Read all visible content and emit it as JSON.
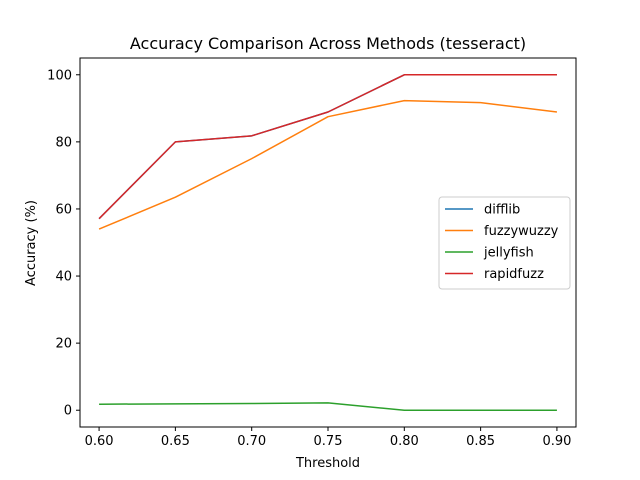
{
  "chart_data": {
    "type": "line",
    "title": "Accuracy Comparison Across Methods (tesseract)",
    "xlabel": "Threshold",
    "ylabel": "Accuracy (%)",
    "x": [
      0.6,
      0.65,
      0.7,
      0.75,
      0.8,
      0.85,
      0.9
    ],
    "x_tick_labels": [
      "0.60",
      "0.65",
      "0.70",
      "0.75",
      "0.80",
      "0.85",
      "0.90"
    ],
    "y_ticks": [
      0,
      20,
      40,
      60,
      80,
      100
    ],
    "y_tick_labels": [
      "0",
      "20",
      "40",
      "60",
      "80",
      "100"
    ],
    "xlim": [
      0.5875,
      0.9125
    ],
    "ylim": [
      -5.0,
      105.0
    ],
    "grid": false,
    "legend_position": "center-right",
    "series": [
      {
        "name": "difflib",
        "color": "#1f77b4",
        "values": [
          57.1,
          80.0,
          81.8,
          88.9,
          100.0,
          100.0,
          100.0
        ]
      },
      {
        "name": "fuzzywuzzy",
        "color": "#ff7f0e",
        "values": [
          54.0,
          63.5,
          75.0,
          87.5,
          92.3,
          91.7,
          88.9
        ]
      },
      {
        "name": "jellyfish",
        "color": "#2ca02c",
        "values": [
          1.8,
          1.9,
          2.0,
          2.2,
          0.0,
          0.0,
          0.0
        ]
      },
      {
        "name": "rapidfuzz",
        "color": "#d62728",
        "values": [
          57.1,
          80.0,
          81.8,
          88.9,
          100.0,
          100.0,
          100.0
        ]
      }
    ]
  }
}
